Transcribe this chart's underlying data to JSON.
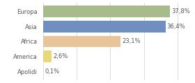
{
  "categories": [
    "Europa",
    "Asia",
    "Africa",
    "America",
    "Apolidi"
  ],
  "values": [
    37.8,
    36.4,
    23.1,
    2.6,
    0.1
  ],
  "labels": [
    "37,8%",
    "36,4%",
    "23,1%",
    "2,6%",
    "0,1%"
  ],
  "bar_colors": [
    "#a8bb8a",
    "#6e8fbf",
    "#e8c49a",
    "#e8d87a",
    "#e8e8e8"
  ],
  "background_color": "#ffffff",
  "xlim": [
    0,
    44
  ],
  "bar_height": 0.78,
  "label_fontsize": 6.0,
  "tick_fontsize": 6.0,
  "grid_color": "#cccccc",
  "grid_values": [
    0,
    10,
    20,
    30,
    40
  ]
}
